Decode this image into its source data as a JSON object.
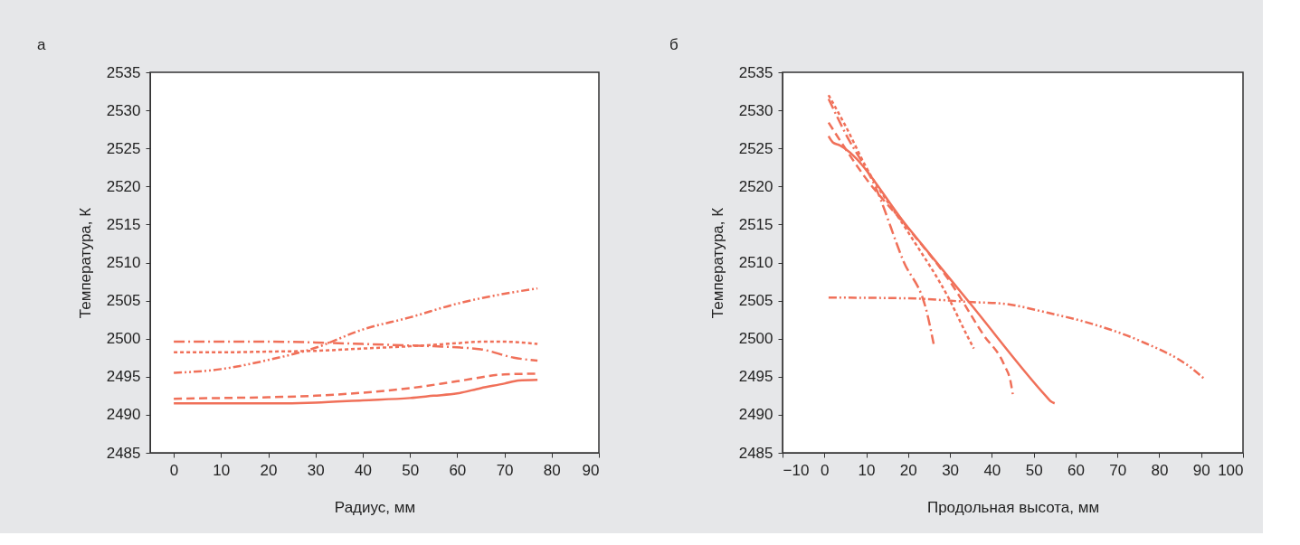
{
  "chart_data": [
    {
      "type": "line",
      "title": "а",
      "xlabel": "Радиус, мм",
      "ylabel": "Температура, К",
      "xlim": [
        -5,
        90
      ],
      "ylim": [
        2485,
        2535
      ],
      "xticks": [
        0,
        10,
        20,
        30,
        40,
        50,
        60,
        70,
        80,
        90
      ],
      "yticks": [
        2485,
        2490,
        2495,
        2500,
        2505,
        2510,
        2515,
        2520,
        2525,
        2530,
        2535
      ],
      "grid": false,
      "series": [
        {
          "color": "#f07059",
          "line_style": "solid",
          "x": [
            0,
            10,
            20,
            30,
            40,
            50,
            55,
            60,
            65,
            70,
            73,
            77
          ],
          "values": [
            2491.5,
            2491.5,
            2491.5,
            2491.6,
            2491.9,
            2492.2,
            2492.5,
            2492.8,
            2493.5,
            2494.1,
            2494.5,
            2494.6
          ]
        },
        {
          "color": "#f07059",
          "line_style": "dashed",
          "x": [
            0,
            10,
            20,
            30,
            40,
            50,
            60,
            70,
            77
          ],
          "values": [
            2492.1,
            2492.2,
            2492.3,
            2492.5,
            2492.9,
            2493.5,
            2494.4,
            2495.3,
            2495.4
          ]
        },
        {
          "color": "#f07059",
          "line_style": "dotted",
          "x": [
            0,
            10,
            20,
            30,
            40,
            50,
            60,
            65,
            70,
            77
          ],
          "values": [
            2498.2,
            2498.2,
            2498.3,
            2498.4,
            2498.7,
            2499.0,
            2499.4,
            2499.6,
            2499.6,
            2499.3
          ]
        },
        {
          "color": "#f07059",
          "line_style": "dashdot",
          "x": [
            0,
            10,
            20,
            30,
            40,
            50,
            55,
            65,
            72,
            77
          ],
          "values": [
            2499.6,
            2499.6,
            2499.6,
            2499.5,
            2499.3,
            2499.1,
            2499.0,
            2498.6,
            2497.5,
            2497.1
          ]
        },
        {
          "color": "#f07059",
          "line_style": "dashdotdot",
          "x": [
            0,
            10,
            20,
            30,
            40,
            50,
            60,
            70,
            77
          ],
          "values": [
            2495.5,
            2496.0,
            2497.2,
            2498.8,
            2501.2,
            2502.8,
            2504.6,
            2505.9,
            2506.6
          ]
        }
      ]
    },
    {
      "type": "line",
      "title": "б",
      "xlabel": "Продольная высота, мм",
      "ylabel": "Температура, К",
      "xlim": [
        -10,
        100
      ],
      "ylim": [
        2485,
        2535
      ],
      "xticks": [
        -10,
        0,
        10,
        20,
        30,
        40,
        50,
        60,
        70,
        80,
        90,
        100
      ],
      "yticks": [
        2485,
        2490,
        2495,
        2500,
        2505,
        2510,
        2515,
        2520,
        2525,
        2530,
        2535
      ],
      "grid": false,
      "series": [
        {
          "color": "#f07059",
          "line_style": "solid",
          "x": [
            1,
            2,
            3.7,
            20,
            35,
            53,
            54,
            55
          ],
          "values": [
            2526.6,
            2525.8,
            2525.4,
            2514.6,
            2504.5,
            2492.4,
            2491.8,
            2491.5
          ]
        },
        {
          "color": "#f07059",
          "line_style": "dashed",
          "x": [
            1,
            10,
            20,
            30,
            38,
            43,
            44.5,
            45
          ],
          "values": [
            2528.4,
            2521,
            2514.5,
            2507.5,
            2500.5,
            2496.5,
            2494.3,
            2492.7
          ]
        },
        {
          "color": "#f07059",
          "line_style": "dotted",
          "x": [
            1,
            5,
            10,
            20,
            30,
            34,
            35.7
          ],
          "values": [
            2532,
            2528,
            2522.5,
            2514,
            2505,
            2500.5,
            2498.7
          ]
        },
        {
          "color": "#f07059",
          "line_style": "dashdot",
          "x": [
            1,
            5,
            12.3,
            18.8,
            24.6,
            26.1
          ],
          "values": [
            2531.5,
            2527,
            2519.8,
            2510.3,
            2503.2,
            2499.3
          ]
        },
        {
          "color": "#f07059",
          "line_style": "dashdotdot",
          "x": [
            1,
            20,
            35.4,
            42.6,
            53.4,
            64.2,
            75,
            88,
            90.8
          ],
          "values": [
            2505.4,
            2505.3,
            2504.8,
            2504.6,
            2503.4,
            2501.9,
            2499.8,
            2496,
            2494.7
          ]
        }
      ]
    }
  ]
}
